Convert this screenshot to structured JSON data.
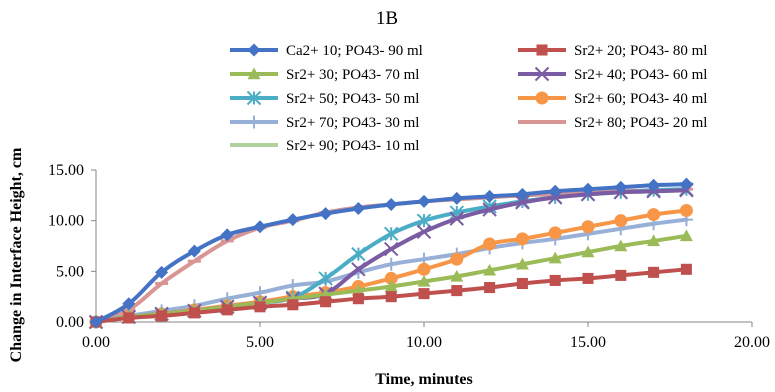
{
  "chart_data": {
    "type": "line",
    "title": "1B",
    "xlabel": "Time, minutes",
    "ylabel": "Change in Interface Height, cm",
    "xlim": [
      0,
      20
    ],
    "ylim": [
      0,
      15
    ],
    "x_ticks": [
      "0.00",
      "5.00",
      "10.00",
      "15.00",
      "20.00"
    ],
    "y_ticks": [
      "0.00",
      "5.00",
      "10.00",
      "15.00"
    ],
    "grid": false,
    "legend_position": "top",
    "x": [
      0,
      1,
      2,
      3,
      4,
      5,
      6,
      7,
      8,
      9,
      10,
      11,
      12,
      13,
      14,
      15,
      16,
      17,
      18
    ],
    "series": [
      {
        "name": "Ca2+ 10; PO43- 90 ml",
        "color": "#4472c4",
        "marker": "diamond",
        "values": [
          0,
          1.8,
          4.9,
          7.0,
          8.6,
          9.4,
          10.1,
          10.7,
          11.2,
          11.6,
          11.9,
          12.2,
          12.4,
          12.6,
          12.9,
          13.1,
          13.3,
          13.5,
          13.6
        ]
      },
      {
        "name": "Sr2+ 20; PO43- 80 ml",
        "color": "#c0504d",
        "marker": "square",
        "values": [
          0,
          0.4,
          0.6,
          0.9,
          1.2,
          1.5,
          1.7,
          2.0,
          2.3,
          2.5,
          2.8,
          3.1,
          3.4,
          3.8,
          4.1,
          4.3,
          4.6,
          4.9,
          5.2
        ]
      },
      {
        "name": "Sr2+ 30; PO43- 70 ml",
        "color": "#9bbb59",
        "marker": "triangle",
        "values": [
          0,
          0.5,
          0.8,
          1.1,
          1.5,
          1.9,
          2.3,
          2.7,
          3.1,
          3.5,
          4.0,
          4.5,
          5.1,
          5.7,
          6.3,
          6.9,
          7.5,
          8.0,
          8.5
        ]
      },
      {
        "name": "Sr2+ 40; PO43- 60 ml",
        "color": "#7b5ba3",
        "marker": "x",
        "values": [
          0,
          0.5,
          0.8,
          1.1,
          1.5,
          1.9,
          2.3,
          2.8,
          5.2,
          7.2,
          8.9,
          10.2,
          11.1,
          11.8,
          12.3,
          12.6,
          12.8,
          12.9,
          13.0
        ]
      },
      {
        "name": "Sr2+ 50; PO43- 50 ml",
        "color": "#4bacc6",
        "marker": "asterisk",
        "values": [
          0,
          0.5,
          0.8,
          1.1,
          1.5,
          1.9,
          2.4,
          4.3,
          6.7,
          8.7,
          10.0,
          10.8,
          11.4,
          11.9,
          12.3,
          12.6,
          12.8,
          13.0,
          13.1
        ]
      },
      {
        "name": "Sr2+ 60; PO43- 40 ml",
        "color": "#f79646",
        "marker": "circle",
        "values": [
          0,
          0.5,
          0.8,
          1.2,
          1.6,
          2.0,
          2.5,
          2.9,
          3.5,
          4.3,
          5.2,
          6.2,
          7.7,
          8.2,
          8.8,
          9.4,
          10.0,
          10.6,
          11.0
        ]
      },
      {
        "name": "Sr2+ 70; PO43- 30 ml",
        "color": "#98b0d8",
        "marker": "plus",
        "values": [
          0,
          0.6,
          1.1,
          1.6,
          2.3,
          2.9,
          3.6,
          4.0,
          4.9,
          5.7,
          6.2,
          6.7,
          7.3,
          7.8,
          8.2,
          8.7,
          9.2,
          9.7,
          10.1
        ]
      },
      {
        "name": "Sr2+ 80; PO43- 20 ml",
        "color": "#d99594",
        "marker": "dash",
        "values": [
          0,
          1.2,
          3.8,
          6.0,
          8.0,
          9.3,
          10.0,
          10.8,
          11.3,
          11.6,
          11.9,
          12.1,
          12.3,
          12.5,
          12.6,
          12.7,
          12.9,
          13.0,
          13.1
        ]
      },
      {
        "name": "Sr2+ 90; PO43- 10 ml",
        "color": "#aed19e",
        "marker": "none",
        "values": [
          0,
          0.5,
          0.8,
          1.1,
          1.5,
          1.9,
          2.3,
          2.8,
          5.2,
          7.2,
          8.9,
          10.2,
          11.1,
          11.8,
          12.3,
          12.6,
          12.8,
          12.9,
          13.0
        ]
      }
    ]
  }
}
